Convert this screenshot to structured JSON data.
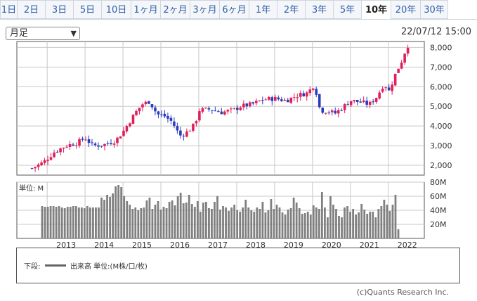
{
  "tabs": [
    {
      "label": "1日",
      "active": false
    },
    {
      "label": "2日",
      "active": false
    },
    {
      "label": "3日",
      "active": false
    },
    {
      "label": "5日",
      "active": false
    },
    {
      "label": "10日",
      "active": false
    },
    {
      "label": "1ヶ月",
      "active": false
    },
    {
      "label": "2ヶ月",
      "active": false
    },
    {
      "label": "3ヶ月",
      "active": false
    },
    {
      "label": "6ヶ月",
      "active": false
    },
    {
      "label": "1年",
      "active": false
    },
    {
      "label": "2年",
      "active": false
    },
    {
      "label": "3年",
      "active": false
    },
    {
      "label": "5年",
      "active": false
    },
    {
      "label": "10年",
      "active": true
    },
    {
      "label": "20年",
      "active": false
    },
    {
      "label": "30年",
      "active": false
    }
  ],
  "period_select": {
    "value": "月足"
  },
  "timestamp": "22/07/12 15:00",
  "legend": {
    "lower": "下段:",
    "volume_label": "出来高 単位:(M株/口/枚)"
  },
  "copyright": "(c)Quants Research Inc.",
  "colors": {
    "up": "#e0205a",
    "down": "#2a3bbd",
    "volume": "#808080",
    "grid": "#c8c8c8"
  },
  "chart_data": [
    {
      "type": "candlestick",
      "title": "",
      "grid": true,
      "x_tick_labels": [
        "2013",
        "2014",
        "2015",
        "2016",
        "2017",
        "2018",
        "2019",
        "2020",
        "2021",
        "2022"
      ],
      "y_tick_labels": [
        "2,000",
        "3,000",
        "4,000",
        "5,000",
        "6,000",
        "7,000",
        "8,000"
      ],
      "ylim": [
        1500,
        8300
      ],
      "trend_points": [
        [
          2012.6,
          1850
        ],
        [
          2012.9,
          2150
        ],
        [
          2013.2,
          2700
        ],
        [
          2013.5,
          3000
        ],
        [
          2013.8,
          3150
        ],
        [
          2014.0,
          3400
        ],
        [
          2014.2,
          3000
        ],
        [
          2014.5,
          3050
        ],
        [
          2014.8,
          3250
        ],
        [
          2015.0,
          3700
        ],
        [
          2015.3,
          4600
        ],
        [
          2015.5,
          5100
        ],
        [
          2015.7,
          5250
        ],
        [
          2015.9,
          4600
        ],
        [
          2016.1,
          4500
        ],
        [
          2016.3,
          4200
        ],
        [
          2016.5,
          3500
        ],
        [
          2016.7,
          3700
        ],
        [
          2016.9,
          4100
        ],
        [
          2017.0,
          4800
        ],
        [
          2017.3,
          4850
        ],
        [
          2017.6,
          4700
        ],
        [
          2017.9,
          4800
        ],
        [
          2018.1,
          5000
        ],
        [
          2018.4,
          5100
        ],
        [
          2018.7,
          5350
        ],
        [
          2019.0,
          5400
        ],
        [
          2019.3,
          5300
        ],
        [
          2019.6,
          5550
        ],
        [
          2019.9,
          5700
        ],
        [
          2020.0,
          6100
        ],
        [
          2020.1,
          5700
        ],
        [
          2020.2,
          4800
        ],
        [
          2020.4,
          4750
        ],
        [
          2020.6,
          4650
        ],
        [
          2020.8,
          4950
        ],
        [
          2021.0,
          5300
        ],
        [
          2021.3,
          5200
        ],
        [
          2021.5,
          5100
        ],
        [
          2021.7,
          5500
        ],
        [
          2021.9,
          6200
        ],
        [
          2022.0,
          5700
        ],
        [
          2022.2,
          6700
        ],
        [
          2022.35,
          7300
        ],
        [
          2022.5,
          8100
        ]
      ]
    },
    {
      "type": "bar",
      "series_name": "出来高",
      "unit_label": "単位: M",
      "y_tick_labels": [
        "20M",
        "40M",
        "60M",
        "80M"
      ],
      "ylim": [
        0,
        80
      ],
      "values": [
        46,
        45,
        45,
        46,
        46,
        45,
        46,
        44,
        43,
        45,
        45,
        46,
        46,
        44,
        44,
        43,
        46,
        44,
        44,
        44,
        44,
        58,
        55,
        62,
        59,
        64,
        74,
        76,
        73,
        60,
        53,
        48,
        42,
        44,
        40,
        43,
        44,
        54,
        58,
        42,
        48,
        53,
        41,
        45,
        43,
        52,
        54,
        47,
        60,
        65,
        50,
        51,
        62,
        49,
        45,
        53,
        38,
        51,
        52,
        43,
        42,
        52,
        60,
        41,
        46,
        44,
        39,
        44,
        48,
        40,
        38,
        44,
        55,
        44,
        40,
        38,
        44,
        42,
        52,
        37,
        40,
        56,
        42,
        48,
        44,
        37,
        34,
        41,
        43,
        58,
        51,
        43,
        35,
        36,
        38,
        34,
        47,
        44,
        42,
        66,
        44,
        30,
        60,
        48,
        42,
        32,
        30,
        44,
        46,
        38,
        42,
        34,
        37,
        49,
        41,
        35,
        38,
        38,
        30,
        42,
        46,
        55,
        48,
        39,
        48,
        62,
        13
      ]
    }
  ]
}
